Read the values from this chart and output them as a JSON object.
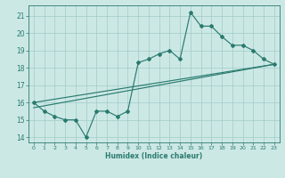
{
  "line1_x": [
    0,
    1,
    2,
    3,
    4,
    5,
    6,
    7,
    8,
    9,
    10,
    11,
    12,
    13,
    14,
    15,
    16,
    17,
    18,
    19,
    20,
    21,
    22,
    23
  ],
  "line1_y": [
    16.0,
    15.5,
    15.2,
    15.0,
    15.0,
    14.0,
    15.5,
    15.5,
    15.2,
    15.5,
    18.3,
    18.5,
    18.8,
    19.0,
    18.5,
    21.2,
    20.4,
    20.4,
    19.8,
    19.3,
    19.3,
    19.0,
    18.5,
    18.2
  ],
  "line2_x": [
    0,
    23
  ],
  "line2_y": [
    15.7,
    18.2
  ],
  "line3_x": [
    0,
    23
  ],
  "line3_y": [
    16.0,
    18.2
  ],
  "color": "#2a7b6f",
  "bg_color": "#cce8e5",
  "grid_color": "#a0ccc8",
  "xlabel": "Humidex (Indice chaleur)",
  "xlim": [
    -0.5,
    23.5
  ],
  "ylim": [
    13.7,
    21.6
  ],
  "yticks": [
    14,
    15,
    16,
    17,
    18,
    19,
    20,
    21
  ],
  "xticks": [
    0,
    1,
    2,
    3,
    4,
    5,
    6,
    7,
    8,
    9,
    10,
    11,
    12,
    13,
    14,
    15,
    16,
    17,
    18,
    19,
    20,
    21,
    22,
    23
  ],
  "xtick_labels": [
    "0",
    "1",
    "2",
    "3",
    "4",
    "5",
    "6",
    "7",
    "8",
    "9",
    "10",
    "11",
    "12",
    "13",
    "14",
    "15",
    "16",
    "17",
    "18",
    "19",
    "20",
    "21",
    "22",
    "23"
  ]
}
